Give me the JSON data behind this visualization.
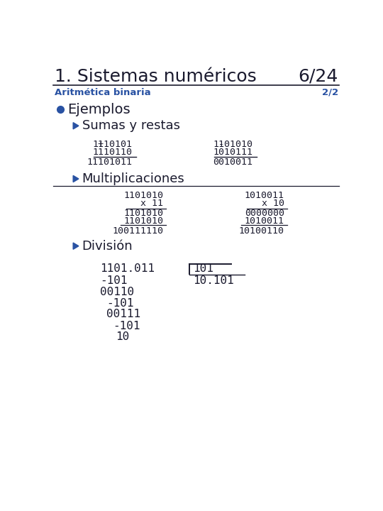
{
  "title": "1. Sistemas numéricos",
  "page": "6/24",
  "subtitle": "Aritmética binaria",
  "subtitle_page": "2/2",
  "dark": "#1a1a2e",
  "accent": "#2952a3",
  "bg": "#FFFFFF",
  "bullet1": "Ejemplos",
  "bullet2": "Sumas y restas",
  "bullet3": "Multiplicaciones",
  "bullet4": "División",
  "add_top1": "1110101",
  "add_top2": "1110110",
  "add_result": "11101011",
  "sub_top1": "1101010",
  "sub_top2": "1010111",
  "sub_result": "0010011",
  "mul1_a": "1101010",
  "mul1_b": "x 11",
  "mul1_p1": "1101010",
  "mul1_p2": "1101010",
  "mul1_r": "100111110",
  "mul2_a": "1010011",
  "mul2_b": "x 10",
  "mul2_p1": "0000000",
  "mul2_p2": "1010011",
  "mul2_r": "10100110",
  "div_dividend": "1101.011",
  "div_divisor": "101",
  "div_quotient": "10.101",
  "div_s1": "-101",
  "div_r1": "00110",
  "div_s2": "-101",
  "div_r2": "00111",
  "div_s3": "-101",
  "div_r3": "10"
}
